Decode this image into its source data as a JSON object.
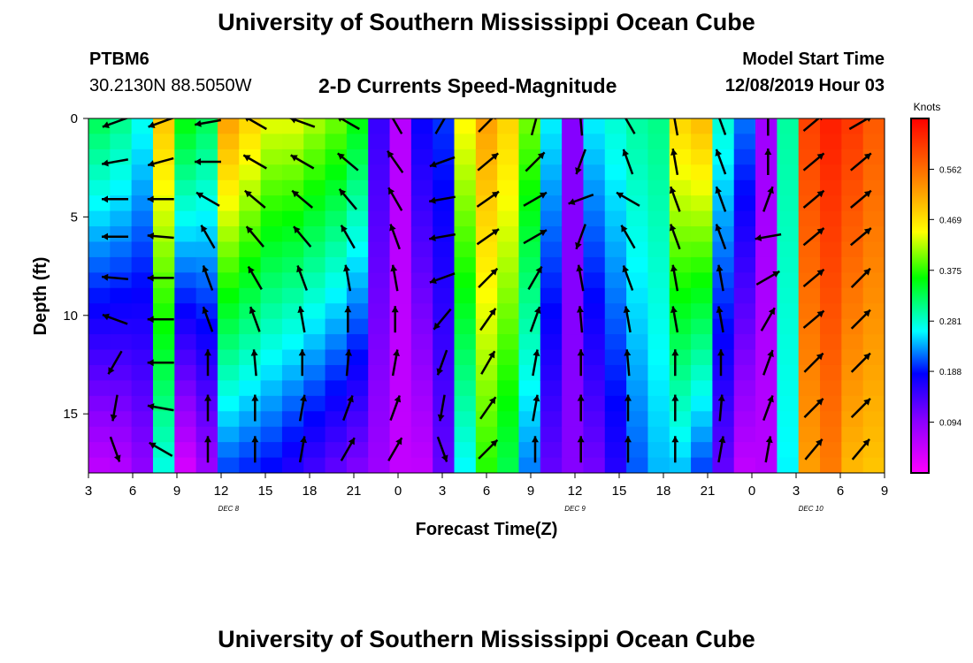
{
  "header": {
    "title": "University of Southern Mississippi Ocean Cube",
    "station_id": "PTBM6",
    "station_location": "30.2130N 88.5050W",
    "plot_title": "2-D Currents Speed-Magnitude",
    "model_start_label": "Model Start Time",
    "model_start_value": "12/08/2019 Hour 03"
  },
  "footer": {
    "title": "University of Southern Mississippi Ocean Cube"
  },
  "chart_data": {
    "type": "heatmap",
    "xlabel": "Forecast Time(Z)",
    "ylabel": "Depth (ft)",
    "x_ticks": [
      "3",
      "6",
      "9",
      "12",
      "15",
      "18",
      "21",
      "0",
      "3",
      "6",
      "9",
      "12",
      "15",
      "18",
      "21",
      "0",
      "3",
      "6",
      "9"
    ],
    "x_start_hour": 3,
    "x_range_hours": [
      3,
      57
    ],
    "date_labels": [
      {
        "label": "DEC 8",
        "hour": 12.5
      },
      {
        "label": "DEC 9",
        "hour": 36
      },
      {
        "label": "DEC 10",
        "hour": 52
      }
    ],
    "y_ticks": [
      0,
      5,
      10,
      15
    ],
    "y_range_ft": [
      0,
      18
    ],
    "y_reversed": true,
    "colorbar": {
      "units": "Knots",
      "ticks": [
        "0.562",
        "0.469",
        "0.375",
        "0.281",
        "0.188",
        "0.094"
      ],
      "min": 0,
      "max": 0.656
    },
    "bands": [
      {
        "hour": 3.0,
        "top": 0.33,
        "bottom": 0.05
      },
      {
        "hour": 4.5,
        "top": 0.31,
        "bottom": 0.06
      },
      {
        "hour": 6.0,
        "top": 0.27,
        "bottom": 0.09
      },
      {
        "hour": 7.5,
        "top": 0.49,
        "bottom": 0.27
      },
      {
        "hour": 9.0,
        "top": 0.36,
        "bottom": 0.03
      },
      {
        "hour": 10.5,
        "top": 0.33,
        "bottom": 0.08
      },
      {
        "hour": 12.0,
        "top": 0.52,
        "bottom": 0.2
      },
      {
        "hour": 13.5,
        "top": 0.48,
        "bottom": 0.19
      },
      {
        "hour": 15.0,
        "top": 0.44,
        "bottom": 0.18
      },
      {
        "hour": 16.5,
        "top": 0.44,
        "bottom": 0.16
      },
      {
        "hour": 18.0,
        "top": 0.42,
        "bottom": 0.14
      },
      {
        "hour": 19.5,
        "top": 0.4,
        "bottom": 0.12
      },
      {
        "hour": 21.0,
        "top": 0.36,
        "bottom": 0.1
      },
      {
        "hour": 22.5,
        "top": 0.15,
        "bottom": 0.08
      },
      {
        "hour": 24.0,
        "top": 0.06,
        "bottom": 0.05
      },
      {
        "hour": 25.5,
        "top": 0.18,
        "bottom": 0.05
      },
      {
        "hour": 27.0,
        "top": 0.2,
        "bottom": 0.12
      },
      {
        "hour": 28.5,
        "top": 0.45,
        "bottom": 0.26
      },
      {
        "hour": 30.0,
        "top": 0.52,
        "bottom": 0.37
      },
      {
        "hour": 31.5,
        "top": 0.48,
        "bottom": 0.33
      },
      {
        "hour": 33.0,
        "top": 0.4,
        "bottom": 0.22
      },
      {
        "hour": 34.5,
        "top": 0.26,
        "bottom": 0.12
      },
      {
        "hour": 36.0,
        "top": 0.1,
        "bottom": 0.1
      },
      {
        "hour": 37.5,
        "top": 0.26,
        "bottom": 0.11
      },
      {
        "hour": 39.0,
        "top": 0.28,
        "bottom": 0.16
      },
      {
        "hour": 40.5,
        "top": 0.3,
        "bottom": 0.21
      },
      {
        "hour": 42.0,
        "top": 0.31,
        "bottom": 0.24
      },
      {
        "hour": 43.5,
        "top": 0.48,
        "bottom": 0.24
      },
      {
        "hour": 45.0,
        "top": 0.5,
        "bottom": 0.2
      },
      {
        "hour": 46.5,
        "top": 0.28,
        "bottom": 0.12
      },
      {
        "hour": 48.0,
        "top": 0.22,
        "bottom": 0.05
      },
      {
        "hour": 49.5,
        "top": 0.08,
        "bottom": 0.06
      },
      {
        "hour": 51.0,
        "top": 0.3,
        "bottom": 0.26
      },
      {
        "hour": 52.5,
        "top": 0.6,
        "bottom": 0.52
      },
      {
        "hour": 54.0,
        "top": 0.63,
        "bottom": 0.55
      },
      {
        "hour": 55.5,
        "top": 0.61,
        "bottom": 0.5
      },
      {
        "hour": 57.0,
        "top": 0.58,
        "bottom": 0.49
      }
    ],
    "vector_depths_ft": [
      0.2,
      2.2,
      4.1,
      6.0,
      8.1,
      10.2,
      12.4,
      14.7,
      16.8
    ],
    "vectors": [
      {
        "hour": 4.8,
        "angles": [
          200,
          190,
          180,
          180,
          175,
          160,
          240,
          260,
          290
        ]
      },
      {
        "hour": 7.9,
        "angles": [
          200,
          195,
          180,
          175,
          180,
          180,
          180,
          170,
          150
        ]
      },
      {
        "hour": 11.1,
        "angles": [
          190,
          180,
          150,
          120,
          110,
          110,
          90,
          90,
          90
        ]
      },
      {
        "hour": 14.3,
        "angles": [
          150,
          150,
          140,
          130,
          120,
          110,
          95,
          90,
          90
        ]
      },
      {
        "hour": 17.5,
        "angles": [
          160,
          150,
          140,
          130,
          110,
          100,
          90,
          80,
          80
        ]
      },
      {
        "hour": 20.6,
        "angles": [
          150,
          140,
          130,
          120,
          100,
          90,
          85,
          70,
          60
        ]
      },
      {
        "hour": 23.8,
        "angles": [
          120,
          125,
          120,
          110,
          100,
          90,
          80,
          70,
          60
        ]
      },
      {
        "hour": 27.0,
        "angles": [
          60,
          200,
          190,
          190,
          200,
          230,
          250,
          260,
          290
        ]
      },
      {
        "hour": 30.1,
        "angles": [
          45,
          40,
          35,
          35,
          45,
          55,
          60,
          55,
          45
        ]
      },
      {
        "hour": 33.3,
        "angles": [
          75,
          45,
          30,
          30,
          60,
          70,
          80,
          80,
          90
        ]
      },
      {
        "hour": 36.4,
        "angles": [
          95,
          250,
          200,
          250,
          100,
          95,
          90,
          90,
          90
        ]
      },
      {
        "hour": 39.6,
        "angles": [
          120,
          110,
          150,
          120,
          110,
          100,
          95,
          90,
          90
        ]
      },
      {
        "hour": 42.8,
        "angles": [
          100,
          100,
          110,
          110,
          100,
          100,
          90,
          90,
          90
        ]
      },
      {
        "hour": 45.9,
        "angles": [
          110,
          110,
          110,
          110,
          100,
          100,
          90,
          85,
          80
        ]
      },
      {
        "hour": 49.1,
        "angles": [
          90,
          90,
          70,
          190,
          30,
          60,
          70,
          70,
          80
        ]
      },
      {
        "hour": 52.2,
        "angles": [
          40,
          40,
          40,
          40,
          40,
          40,
          45,
          45,
          50
        ]
      },
      {
        "hour": 55.4,
        "angles": [
          30,
          40,
          40,
          40,
          45,
          45,
          45,
          45,
          50
        ]
      }
    ]
  }
}
